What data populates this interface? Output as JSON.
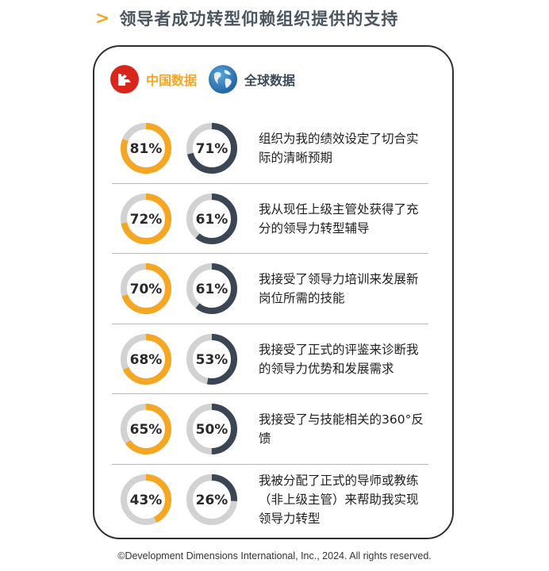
{
  "title": "领导者成功转型仰赖组织提供的支持",
  "legend": {
    "china_label": "中国数据",
    "global_label": "全球数据",
    "china_icon": "china-flag-icon",
    "global_icon": "globe-icon"
  },
  "colors": {
    "china": "#f5a623",
    "global": "#3a4654",
    "track": "#d2d2d2",
    "accent": "#f5a623"
  },
  "chart_data": {
    "type": "donut",
    "series": [
      {
        "name": "中国数据",
        "values": [
          81,
          72,
          70,
          68,
          65,
          43
        ]
      },
      {
        "name": "全球数据",
        "values": [
          71,
          61,
          61,
          53,
          50,
          26
        ]
      }
    ],
    "categories": [
      "组织为我的绩效设定了切合实际的清晰预期",
      "我从现任上级主管处获得了充分的领导力转型辅导",
      "我接受了领导力培训来发展新岗位所需的技能",
      "我接受了正式的评鉴来诊断我的领导力优势和发展需求",
      "我接受了与技能相关的360°反馈",
      "我被分配了正式的导师或教练（非上级主管）来帮助我实现领导力转型"
    ],
    "unit": "%"
  },
  "rows": [
    {
      "china": "81%",
      "global": "71%",
      "text": "组织为我的绩效设定了切合实际的清晰预期"
    },
    {
      "china": "72%",
      "global": "61%",
      "text": "我从现任上级主管处获得了充分的领导力转型辅导"
    },
    {
      "china": "70%",
      "global": "61%",
      "text": "我接受了领导力培训来发展新岗位所需的技能"
    },
    {
      "china": "68%",
      "global": "53%",
      "text": "我接受了正式的评鉴来诊断我的领导力优势和发展需求"
    },
    {
      "china": "65%",
      "global": "50%",
      "text": "我接受了与技能相关的360°反馈"
    },
    {
      "china": "43%",
      "global": "26%",
      "text": "我被分配了正式的导师或教练（非上级主管）来帮助我实现领导力转型"
    }
  ],
  "footer": "©Development Dimensions International, Inc., 2024. All rights reserved."
}
